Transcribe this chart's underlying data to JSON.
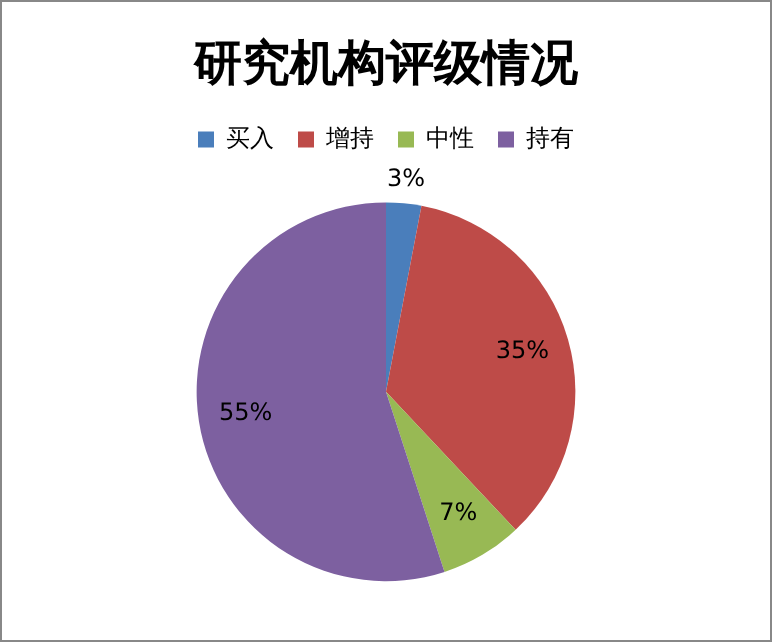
{
  "chart_data": {
    "type": "pie",
    "title": "研究机构评级情况",
    "categories": [
      "买入",
      "增持",
      "中性",
      "持有"
    ],
    "values": [
      3,
      35,
      7,
      55
    ],
    "colors": [
      "#4a7ebb",
      "#be4b48",
      "#98b954",
      "#7d60a0"
    ],
    "value_labels": [
      "3%",
      "35%",
      "7%",
      "55%"
    ],
    "legend": "top"
  }
}
